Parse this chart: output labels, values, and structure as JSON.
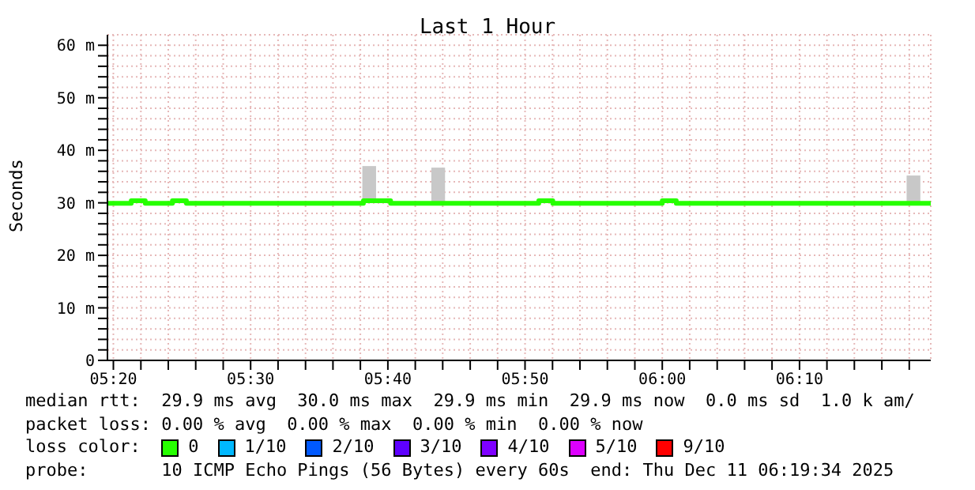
{
  "chart_data": {
    "type": "step",
    "title": "Last 1 Hour",
    "ylabel": "Seconds",
    "legend_title": "loss color:",
    "x": [
      5.3261,
      5.355,
      5.372,
      5.405,
      5.422,
      5.637,
      5.67,
      5.85,
      5.867,
      6.0,
      6.017,
      6.3261
    ],
    "xlim": [
      5.3261,
      6.3261
    ],
    "xticks": [
      {
        "value": 5.3333,
        "label": "05:20"
      },
      {
        "value": 5.3667,
        "label": null
      },
      {
        "value": 5.4,
        "label": null
      },
      {
        "value": 5.4333,
        "label": null
      },
      {
        "value": 5.4667,
        "label": null
      },
      {
        "value": 5.5,
        "label": "05:30"
      },
      {
        "value": 5.5333,
        "label": null
      },
      {
        "value": 5.5667,
        "label": null
      },
      {
        "value": 5.6,
        "label": null
      },
      {
        "value": 5.6333,
        "label": null
      },
      {
        "value": 5.6667,
        "label": "05:40"
      },
      {
        "value": 5.7,
        "label": null
      },
      {
        "value": 5.7333,
        "label": null
      },
      {
        "value": 5.7667,
        "label": null
      },
      {
        "value": 5.8,
        "label": null
      },
      {
        "value": 5.8333,
        "label": "05:50"
      },
      {
        "value": 5.8667,
        "label": null
      },
      {
        "value": 5.9,
        "label": null
      },
      {
        "value": 5.9333,
        "label": null
      },
      {
        "value": 5.9667,
        "label": null
      },
      {
        "value": 6.0,
        "label": "06:00"
      },
      {
        "value": 6.0333,
        "label": null
      },
      {
        "value": 6.0667,
        "label": null
      },
      {
        "value": 6.1,
        "label": null
      },
      {
        "value": 6.1333,
        "label": null
      },
      {
        "value": 6.1667,
        "label": "06:10"
      },
      {
        "value": 6.2,
        "label": null
      },
      {
        "value": 6.2333,
        "label": null
      },
      {
        "value": 6.2667,
        "label": null
      },
      {
        "value": 6.3,
        "label": null
      }
    ],
    "ylim": [
      0,
      62
    ],
    "yticks": [
      {
        "value": 0,
        "label": "0"
      },
      {
        "value": 2,
        "label": null
      },
      {
        "value": 4,
        "label": null
      },
      {
        "value": 6,
        "label": null
      },
      {
        "value": 8,
        "label": null
      },
      {
        "value": 10,
        "label": "10 m"
      },
      {
        "value": 12,
        "label": null
      },
      {
        "value": 14,
        "label": null
      },
      {
        "value": 16,
        "label": null
      },
      {
        "value": 18,
        "label": null
      },
      {
        "value": 20,
        "label": "20 m"
      },
      {
        "value": 22,
        "label": null
      },
      {
        "value": 24,
        "label": null
      },
      {
        "value": 26,
        "label": null
      },
      {
        "value": 28,
        "label": null
      },
      {
        "value": 30,
        "label": "30 m"
      },
      {
        "value": 32,
        "label": null
      },
      {
        "value": 34,
        "label": null
      },
      {
        "value": 36,
        "label": null
      },
      {
        "value": 38,
        "label": null
      },
      {
        "value": 40,
        "label": "40 m"
      },
      {
        "value": 42,
        "label": null
      },
      {
        "value": 44,
        "label": null
      },
      {
        "value": 46,
        "label": null
      },
      {
        "value": 48,
        "label": null
      },
      {
        "value": 50,
        "label": "50 m"
      },
      {
        "value": 52,
        "label": null
      },
      {
        "value": 54,
        "label": null
      },
      {
        "value": 56,
        "label": null
      },
      {
        "value": 58,
        "label": null
      },
      {
        "value": 60,
        "label": "60 m"
      }
    ],
    "grid": true,
    "legend": "bottom",
    "series": [
      {
        "type": "bar",
        "color": "#c8c8c8",
        "x": [
          5.6439,
          5.7277,
          6.305
        ],
        "base": [
          30,
          30,
          30
        ],
        "values": [
          7,
          6.7,
          5.2
        ]
      },
      {
        "name": "0",
        "color": "#26ff00",
        "values": [
          29.9,
          30.4,
          29.9,
          30.4,
          29.9,
          30.4,
          29.9,
          30.4,
          29.9,
          30.4,
          29.9,
          29.9
        ]
      },
      {
        "name": "1/10",
        "color": "#00b8ff",
        "values": [
          null,
          null,
          null,
          null,
          null,
          null,
          null,
          null,
          null,
          null,
          null,
          null
        ]
      },
      {
        "name": "2/10",
        "color": "#0059ff",
        "values": [
          null,
          null,
          null,
          null,
          null,
          null,
          null,
          null,
          null,
          null,
          null,
          null
        ]
      },
      {
        "name": "3/10",
        "color": "#5e00ff",
        "values": [
          null,
          null,
          null,
          null,
          null,
          null,
          null,
          null,
          null,
          null,
          null,
          null
        ]
      },
      {
        "name": "4/10",
        "color": "#7e00ff",
        "values": [
          null,
          null,
          null,
          null,
          null,
          null,
          null,
          null,
          null,
          null,
          null,
          null
        ]
      },
      {
        "name": "5/10",
        "color": "#dd00ff",
        "values": [
          null,
          null,
          null,
          null,
          null,
          null,
          null,
          null,
          null,
          null,
          null,
          null
        ]
      },
      {
        "name": "9/10",
        "color": "#ff0000",
        "values": [
          null,
          null,
          null,
          null,
          null,
          null,
          null,
          null,
          null,
          null,
          null,
          null
        ]
      }
    ],
    "annotations": [
      "median rtt:  29.9 ms avg  30.0 ms max  29.9 ms min  29.9 ms now  0.0 ms sd  1.0 k am/",
      "packet loss: 0.00 % avg  0.00 % max  0.00 % min  0.00 % now",
      "probe:       10 ICMP Echo Pings (56 Bytes) every 60s  end: Thu Dec 11 06:19:34 2025"
    ]
  }
}
